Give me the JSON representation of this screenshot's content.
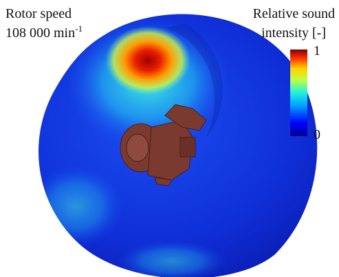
{
  "labels": {
    "rotor_speed": "Rotor speed",
    "speed_value": "108 000 min",
    "speed_unit_exponent": "-1"
  },
  "colorbar": {
    "title_line1": "Relative sound",
    "title_line2": "intensity [-]",
    "max_label": "1",
    "min_label": "0"
  }
}
